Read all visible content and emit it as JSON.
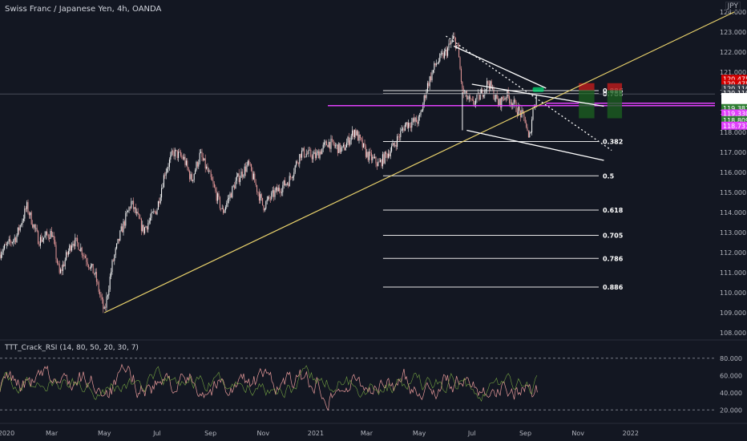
{
  "header": {
    "title": "Swiss Franc / Japanese Yen, 4h, OANDA",
    "currency": "JPY",
    "indicator": "TTT_Crack_RSI (14, 80, 50, 20, 30, 7)"
  },
  "colors": {
    "background": "#131722",
    "trendline": "#e8d16b",
    "magenta": "#e040fb",
    "white_line": "#e6e6e6",
    "candle_up": "#ffffff",
    "candle_down": "#e89a9a",
    "sl_red": "#b71c1c",
    "tp_green": "#1b5e20"
  },
  "chart_data": [
    {
      "type": "candlestick",
      "title": "Swiss Franc / Japanese Yen, 4h, OANDA",
      "x_tick_labels": [
        "2020",
        "Mar",
        "May",
        "Jul",
        "Sep",
        "Nov",
        "2021",
        "Mar",
        "May",
        "Jul",
        "Sep",
        "Nov",
        "2022"
      ],
      "y_tick_labels": [
        "108.000",
        "109.000",
        "110.000",
        "111.000",
        "112.000",
        "113.000",
        "114.000",
        "115.000",
        "116.000",
        "117.000",
        "118.000",
        "119.000",
        "120.000",
        "121.000",
        "122.000",
        "123.000",
        "124.000"
      ],
      "ylim": [
        107.8,
        124.2
      ],
      "grid": false,
      "price_path": [
        [
          "2020-01",
          112.0
        ],
        [
          "2020-01-20",
          112.8
        ],
        [
          "2020-02",
          114.3
        ],
        [
          "2020-02-15",
          112.6
        ],
        [
          "2020-03",
          113.0
        ],
        [
          "2020-03-10",
          110.9
        ],
        [
          "2020-03-25",
          112.6
        ],
        [
          "2020-04",
          112.4
        ],
        [
          "2020-04-20",
          110.9
        ],
        [
          "2020-05",
          109.0
        ],
        [
          "2020-05-10",
          111.4
        ],
        [
          "2020-05-20",
          113.0
        ],
        [
          "2020-06",
          114.5
        ],
        [
          "2020-06-15",
          113.1
        ],
        [
          "2020-07",
          114.2
        ],
        [
          "2020-07-10",
          116.0
        ],
        [
          "2020-07-20",
          117.0
        ],
        [
          "2020-08",
          116.7
        ],
        [
          "2020-08-10",
          115.6
        ],
        [
          "2020-08-20",
          116.9
        ],
        [
          "2020-09",
          115.7
        ],
        [
          "2020-09-15",
          114.0
        ],
        [
          "2020-10",
          115.6
        ],
        [
          "2020-10-15",
          116.4
        ],
        [
          "2020-11",
          114.3
        ],
        [
          "2020-11-15",
          115.0
        ],
        [
          "2020-12",
          115.6
        ],
        [
          "2020-12-15",
          117.0
        ],
        [
          "2021-01",
          116.8
        ],
        [
          "2021-01-15",
          117.5
        ],
        [
          "2021-02",
          117.1
        ],
        [
          "2021-02-15",
          118.1
        ],
        [
          "2021-03",
          116.9
        ],
        [
          "2021-03-15",
          116.4
        ],
        [
          "2021-04",
          117.3
        ],
        [
          "2021-04-15",
          118.4
        ],
        [
          "2021-05",
          118.6
        ],
        [
          "2021-05-10",
          120.3
        ],
        [
          "2021-05-20",
          121.4
        ],
        [
          "2021-06",
          122.0
        ],
        [
          "2021-06-10",
          122.7
        ],
        [
          "2021-06-15",
          122.1
        ],
        [
          "2021-06-20",
          120.0
        ],
        [
          "2021-07",
          119.4
        ],
        [
          "2021-07-10",
          119.8
        ],
        [
          "2021-07-20",
          120.5
        ],
        [
          "2021-08",
          119.4
        ],
        [
          "2021-08-10",
          119.9
        ],
        [
          "2021-08-20",
          119.3
        ],
        [
          "2021-09",
          118.6
        ],
        [
          "2021-09-05",
          117.5
        ],
        [
          "2021-09-10",
          119.2
        ],
        [
          "2021-09-15",
          120.0
        ]
      ],
      "fib_levels": [
        {
          "label": "0.886",
          "value": 120.08
        },
        {
          "label": "0.786",
          "value": 119.93
        },
        {
          "label": "0.382",
          "value": 117.54
        },
        {
          "label": "0.5",
          "value": 115.83
        },
        {
          "label": "0.618",
          "value": 114.12
        },
        {
          "label": "0.705",
          "value": 112.86
        },
        {
          "label": "0.786",
          "value": 111.71
        },
        {
          "label": "0.886",
          "value": 110.28
        }
      ],
      "horizontal_lines": [
        119.91,
        119.33
      ],
      "price_tags": [
        {
          "text": "120.475",
          "color": "#d50000"
        },
        {
          "text": "120.475",
          "color": "#d50000"
        },
        {
          "text": "120.110",
          "color": "#363a45"
        },
        {
          "text": "120.110",
          "color": "#363a45"
        },
        {
          "text": "119.910",
          "color": "#ffffff",
          "text_color": "#131722"
        },
        {
          "text": "01:17:34",
          "color": "#ffffff",
          "text_color": "#131722"
        },
        {
          "text": "119.381",
          "color": "#2e7d32"
        },
        {
          "text": "119.330",
          "color": "#e040fb"
        },
        {
          "text": "118.809",
          "color": "#2e7d32"
        },
        {
          "text": "118.731",
          "color": "#e040fb"
        }
      ],
      "tag_values": [
        120.67,
        120.42,
        120.19,
        119.96,
        119.76,
        119.52,
        119.21,
        118.94,
        118.61,
        118.33
      ],
      "trendlines": [
        {
          "from": [
            "2020-05",
            109.0
          ],
          "to": [
            "2022-05",
            124.0
          ],
          "color": "#e8d16b"
        },
        {
          "from": [
            "2021-06-10",
            122.3
          ],
          "to": [
            "2021-09-25",
            120.2
          ],
          "color": "#ffffff"
        },
        {
          "from": [
            "2021-06-25",
            118.1
          ],
          "to": [
            "2021-12",
            116.6
          ],
          "color": "#ffffff"
        },
        {
          "from": [
            "2021-06",
            122.8
          ],
          "to": [
            "2021-12-10",
            117.1
          ],
          "color": "#ffffff",
          "dashed": true
        },
        {
          "from": [
            "2021-07",
            120.4
          ],
          "to": [
            "2021-12",
            119.3
          ],
          "color": "#ffffff"
        }
      ]
    },
    {
      "type": "line",
      "title": "TTT_Crack_RSI (14, 80, 50, 20, 30, 7)",
      "y_tick_labels": [
        "20.000",
        "40.000",
        "60.000",
        "80.000"
      ],
      "ylim": [
        10,
        90
      ],
      "bands": [
        80,
        20
      ],
      "grid": false
    }
  ]
}
